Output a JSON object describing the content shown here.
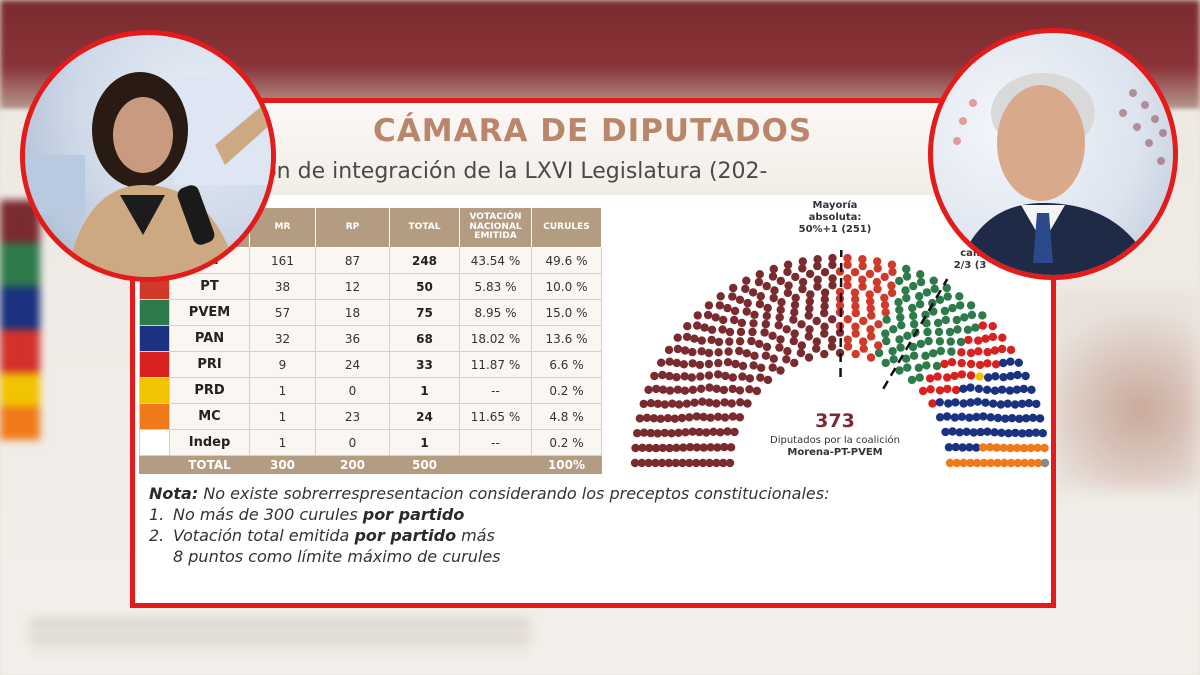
{
  "slide": {
    "title": "CÁMARA DE DIPUTADOS",
    "subtitle": "ción de integración de la LXVI Legislatura (202-"
  },
  "table": {
    "headers": [
      "",
      "",
      "MR",
      "RP",
      "TOTAL",
      "VOTACIÓN NACIONAL EMITIDA",
      "CURULES"
    ],
    "rows": [
      {
        "party": "na",
        "color": "#7a2b2f",
        "mr": "161",
        "rp": "87",
        "total": "248",
        "votacion": "43.54 %",
        "curules": "49.6 %"
      },
      {
        "party": "PT",
        "color": "#cf3a2a",
        "mr": "38",
        "rp": "12",
        "total": "50",
        "votacion": "5.83 %",
        "curules": "10.0 %"
      },
      {
        "party": "PVEM",
        "color": "#2d7a4b",
        "mr": "57",
        "rp": "18",
        "total": "75",
        "votacion": "8.95 %",
        "curules": "15.0 %"
      },
      {
        "party": "PAN",
        "color": "#1a3280",
        "mr": "32",
        "rp": "36",
        "total": "68",
        "votacion": "18.02 %",
        "curules": "13.6 %"
      },
      {
        "party": "PRI",
        "color": "#d9211f",
        "mr": "9",
        "rp": "24",
        "total": "33",
        "votacion": "11.87 %",
        "curules": "6.6 %"
      },
      {
        "party": "PRD",
        "color": "#f2c300",
        "mr": "1",
        "rp": "0",
        "total": "1",
        "votacion": "--",
        "curules": "0.2 %"
      },
      {
        "party": "MC",
        "color": "#f07a1a",
        "mr": "1",
        "rp": "23",
        "total": "24",
        "votacion": "11.65 %",
        "curules": "4.8 %"
      },
      {
        "party": "Indep",
        "color": "#ffffff",
        "mr": "1",
        "rp": "0",
        "total": "1",
        "votacion": "--",
        "curules": "0.2 %"
      }
    ],
    "total": {
      "label": "TOTAL",
      "mr": "300",
      "rp": "200",
      "total": "500",
      "votacion": "",
      "curules": "100%"
    }
  },
  "nota": {
    "label": "Nota:",
    "text": " No existe sobrerrespresentacion considerando los preceptos constitucionales:",
    "line1_a": "No más de 300 curules ",
    "line1_b": "por partido",
    "line2_a": "Votación total emitida ",
    "line2_b": "por partido",
    "line2_c": " más",
    "line2_d": "8 puntos como límite máximo de curules",
    "n1": "1.",
    "n2": "2."
  },
  "chart_labels": {
    "mayoria_1": "Mayoría",
    "mayoria_2": "absoluta:",
    "mayoria_3": "50%+1 (251)",
    "twothirds_1": "cali",
    "twothirds_2": "2/3 (3",
    "coalition_number": "373",
    "coalition_text_1": "Diputados por la coalición",
    "coalition_text_2": "Morena-PT-PVEM"
  },
  "chart_data": {
    "type": "parliament",
    "total_seats": 500,
    "series": [
      {
        "name": "Morena",
        "value": 248,
        "color": "#7a2b2f"
      },
      {
        "name": "PT",
        "value": 50,
        "color": "#cf3a2a"
      },
      {
        "name": "PVEM",
        "value": 75,
        "color": "#2d7a4b"
      },
      {
        "name": "PRI",
        "value": 33,
        "color": "#d9211f"
      },
      {
        "name": "PRD",
        "value": 1,
        "color": "#f2c300"
      },
      {
        "name": "PAN",
        "value": 68,
        "color": "#1a3280"
      },
      {
        "name": "MC",
        "value": 24,
        "color": "#f07a1a"
      },
      {
        "name": "Indep",
        "value": 1,
        "color": "#888888"
      }
    ],
    "thresholds": [
      {
        "label": "50%+1 (251)",
        "value": 251
      },
      {
        "label": "2/3 (334)",
        "value": 334
      }
    ],
    "coalition_seats": 373
  }
}
